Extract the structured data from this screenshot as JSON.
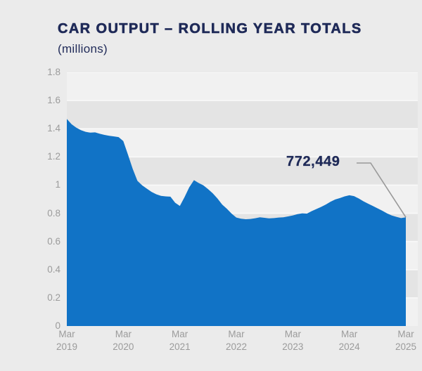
{
  "header": {
    "title": "CAR OUTPUT – ROLLING YEAR TOTALS",
    "subtitle": "(millions)"
  },
  "colors": {
    "page_background": "#ebebeb",
    "band_light": "#f1f1f1",
    "band_dark": "#e4e4e4",
    "gridline": "#f9f9f9",
    "area_blue": "#1173c6",
    "title_navy": "#1f2a58",
    "axis_text_gray": "#9b9b9b",
    "callout_gray": "#999999"
  },
  "chart_data": {
    "type": "area",
    "title": "CAR OUTPUT – ROLLING YEAR TOTALS",
    "subtitle": "(millions)",
    "series_name": "Car output, rolling year total",
    "unit": "millions",
    "frequency": "monthly",
    "x_start": "Mar 2019",
    "x_end": "Mar 2025",
    "ylim": [
      0,
      1.8
    ],
    "ytick_step": 0.2,
    "ytick_labels": [
      "1.8",
      "1.6",
      "1.4",
      "1.2",
      "1",
      "0.8",
      "0.6",
      "0.4",
      "0.2",
      "0"
    ],
    "xtick_labels": [
      {
        "month": "Mar",
        "year": "2019"
      },
      {
        "month": "Mar",
        "year": "2020"
      },
      {
        "month": "Mar",
        "year": "2021"
      },
      {
        "month": "Mar",
        "year": "2022"
      },
      {
        "month": "Mar",
        "year": "2023"
      },
      {
        "month": "Mar",
        "year": "2024"
      },
      {
        "month": "Mar",
        "year": "2025"
      }
    ],
    "xtick_indices": [
      0,
      12,
      24,
      36,
      48,
      60,
      72
    ],
    "values": [
      1.47,
      1.432,
      1.408,
      1.39,
      1.378,
      1.372,
      1.374,
      1.364,
      1.356,
      1.35,
      1.346,
      1.341,
      1.313,
      1.215,
      1.115,
      1.03,
      0.998,
      0.975,
      0.952,
      0.935,
      0.924,
      0.92,
      0.918,
      0.875,
      0.852,
      0.915,
      0.985,
      1.035,
      1.015,
      0.998,
      0.972,
      0.942,
      0.905,
      0.862,
      0.832,
      0.798,
      0.77,
      0.762,
      0.758,
      0.76,
      0.765,
      0.772,
      0.768,
      0.764,
      0.766,
      0.77,
      0.772,
      0.778,
      0.785,
      0.794,
      0.8,
      0.798,
      0.815,
      0.83,
      0.845,
      0.862,
      0.882,
      0.898,
      0.908,
      0.92,
      0.928,
      0.922,
      0.905,
      0.885,
      0.868,
      0.852,
      0.835,
      0.818,
      0.8,
      0.785,
      0.775,
      0.766,
      0.772
    ],
    "grid": "horizontal alternating bands every 0.2 with light gridlines",
    "legend": "none",
    "annotation": {
      "label": "772,449",
      "points_to_x": "Mar 2025",
      "points_to_value": 0.772
    }
  }
}
